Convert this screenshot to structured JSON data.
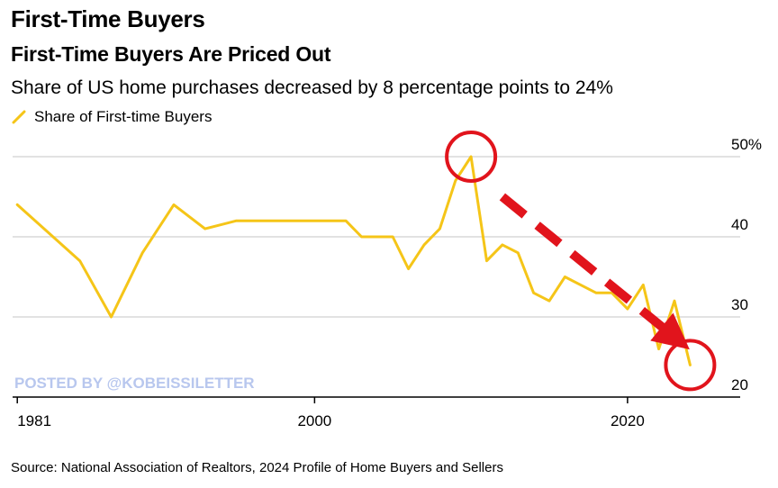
{
  "header": {
    "brand": "First-Time Buyers",
    "title": "First-Time Buyers Are Priced Out",
    "subtitle": "Share of US home purchases decreased by 8 percentage points to 24%"
  },
  "legend": {
    "label": "Share of First-time Buyers"
  },
  "watermark": "POSTED BY @KOBEISSILETTER",
  "source": "Source: National Association of Realtors, 2024 Profile of Home Buyers and Sellers",
  "colors": {
    "series": "#f5c518",
    "annotation": "#e1141c",
    "grid": "#d9d9d9",
    "axis": "#000000"
  },
  "chart_data": {
    "type": "line",
    "series": [
      {
        "name": "Share of First-time Buyers",
        "x": [
          1981,
          1985,
          1987,
          1989,
          1991,
          1993,
          1995,
          1997,
          1999,
          2001,
          2002,
          2003,
          2005,
          2006,
          2007,
          2008,
          2009,
          2010,
          2011,
          2012,
          2013,
          2014,
          2015,
          2016,
          2017,
          2018,
          2019,
          2020,
          2021,
          2022,
          2023,
          2024
        ],
        "values": [
          44,
          37,
          30,
          38,
          44,
          41,
          42,
          42,
          42,
          42,
          42,
          40,
          40,
          36,
          39,
          41,
          47,
          50,
          37,
          39,
          38,
          33,
          32,
          35,
          34,
          33,
          33,
          31,
          34,
          26,
          32,
          24
        ]
      }
    ],
    "x_ticks": [
      "1981",
      "2000",
      "2020"
    ],
    "y_ticks": [
      "50%",
      "40",
      "30",
      "20"
    ],
    "xlim": [
      1980.7,
      2027.2
    ],
    "ylim": [
      20,
      50
    ],
    "grid": true,
    "annotations": [
      {
        "type": "circle",
        "x": 2010,
        "y": 50
      },
      {
        "type": "circle",
        "x": 2024,
        "y": 24
      },
      {
        "type": "dashed-arrow",
        "from": [
          2012,
          45
        ],
        "to": [
          2023.3,
          27
        ]
      }
    ]
  }
}
